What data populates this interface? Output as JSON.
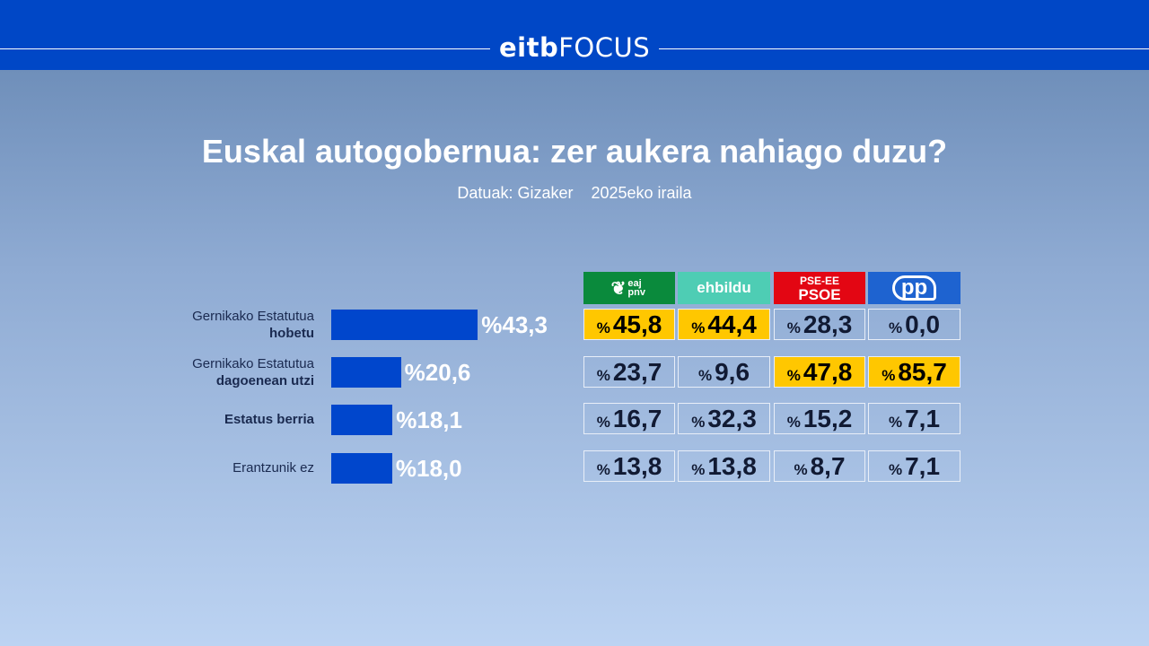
{
  "header": {
    "logo_a": "eitb",
    "logo_b": "FOCUS",
    "brand_color": "#0047c6"
  },
  "title": "Euskal autogobernua: zer aukera nahiago duzu?",
  "subtitle": {
    "source": "Datuak: Gizaker",
    "date": "2025eko iraila"
  },
  "rows": [
    {
      "line1": "Gernikako Estatutua",
      "line2": "hobetu",
      "value": 43.3,
      "label": "%43,3"
    },
    {
      "line1": "Gernikako Estatutua",
      "line2": "dagoenean utzi",
      "value": 20.6,
      "label": "%20,6"
    },
    {
      "line1": "",
      "line2": "Estatus berria",
      "value": 18.1,
      "label": "%18,1"
    },
    {
      "line1": "Erantzunik ez",
      "line2": "",
      "value": 18.0,
      "label": "%18,0"
    }
  ],
  "parties": [
    {
      "name": "eaj pnv",
      "color": "#0a8a3c"
    },
    {
      "name": "ehbildu",
      "color": "#4ecdb4"
    },
    {
      "name_top": "PSE-EE",
      "name": "PSOE",
      "color": "#e30613"
    },
    {
      "name": "pp",
      "color": "#1e63d0"
    }
  ],
  "highlight_color": "#ffc700",
  "chart_data": [
    {
      "type": "bar",
      "orientation": "horizontal",
      "categories": [
        "Gernikako Estatutua hobetu",
        "Gernikako Estatutua dagoenean utzi",
        "Estatus berria",
        "Erantzunik ez"
      ],
      "values": [
        43.3,
        20.6,
        18.1,
        18.0
      ],
      "bar_color": "#0046cc"
    },
    {
      "type": "table",
      "columns": [
        "eaj pnv",
        "ehbildu",
        "PSE-EE PSOE",
        "pp"
      ],
      "rows": [
        {
          "values": [
            "45,8",
            "44,4",
            "28,3",
            "0,0"
          ],
          "highlight": [
            true,
            true,
            false,
            false
          ]
        },
        {
          "values": [
            "23,7",
            "9,6",
            "47,8",
            "85,7"
          ],
          "highlight": [
            false,
            false,
            true,
            true
          ]
        },
        {
          "values": [
            "16,7",
            "32,3",
            "15,2",
            "7,1"
          ],
          "highlight": [
            false,
            false,
            false,
            false
          ]
        },
        {
          "values": [
            "13,8",
            "13,8",
            "8,7",
            "7,1"
          ],
          "highlight": [
            false,
            false,
            false,
            false
          ]
        }
      ],
      "unit_symbol": "%"
    }
  ]
}
